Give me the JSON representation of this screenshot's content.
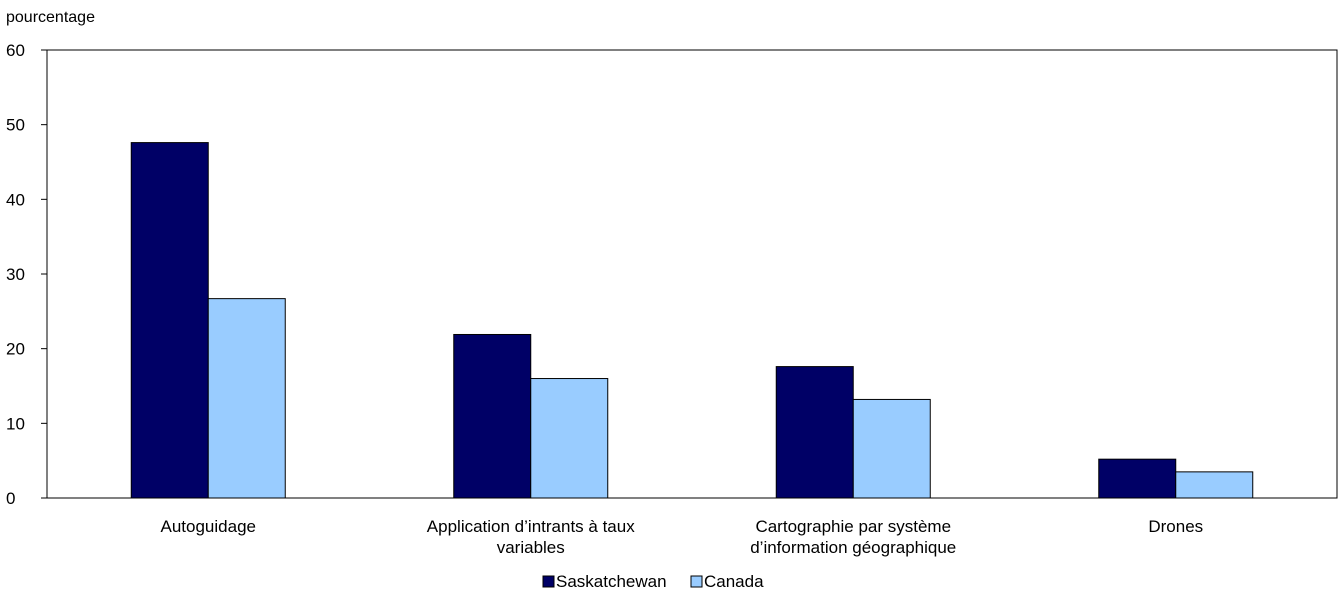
{
  "chart_data": {
    "type": "bar",
    "title": "",
    "xlabel": "",
    "ylabel": "pourcentage",
    "ylim": [
      0,
      60
    ],
    "yticks": [
      0,
      10,
      20,
      30,
      40,
      50,
      60
    ],
    "grid": false,
    "legend_position": "bottom-center",
    "categories": [
      [
        "Autoguidage"
      ],
      [
        "Application d’intrants à taux",
        "variables"
      ],
      [
        "Cartographie par système",
        "d’information géographique"
      ],
      [
        "Drones"
      ]
    ],
    "series": [
      {
        "name": "Saskatchewan",
        "color": "#000066",
        "values": [
          47.6,
          21.9,
          17.6,
          5.2
        ]
      },
      {
        "name": "Canada",
        "color": "#99ccff",
        "values": [
          26.7,
          16.0,
          13.2,
          3.5
        ]
      }
    ]
  }
}
